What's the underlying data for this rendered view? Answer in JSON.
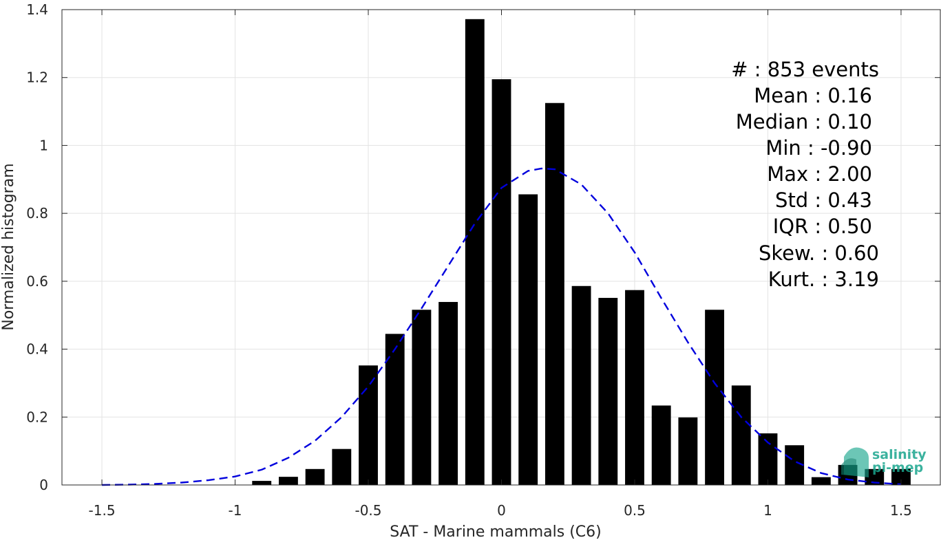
{
  "chart_data": {
    "type": "bar",
    "xlabel": "SAT - Marine mammals (C6)",
    "ylabel": "Normalized histogram",
    "xlim": [
      -1.65,
      1.65
    ],
    "ylim": [
      0,
      1.4
    ],
    "xticks": [
      -1.5,
      -1,
      -0.5,
      0,
      0.5,
      1,
      1.5
    ],
    "xtick_labels": [
      "-1.5",
      "-1",
      "-0.5",
      "0",
      "0.5",
      "1",
      "1.5"
    ],
    "yticks": [
      0,
      0.2,
      0.4,
      0.6,
      0.8,
      1,
      1.2,
      1.4
    ],
    "ytick_labels": [
      "0",
      "0.2",
      "0.4",
      "0.6",
      "0.8",
      "1",
      "1.2",
      "1.4"
    ],
    "grid": true,
    "bar_color": "#000000",
    "bars": {
      "x": [
        -0.9,
        -0.8,
        -0.7,
        -0.6,
        -0.5,
        -0.4,
        -0.3,
        -0.2,
        -0.1,
        0.0,
        0.1,
        0.2,
        0.3,
        0.4,
        0.5,
        0.6,
        0.7,
        0.8,
        0.9,
        1.0,
        1.1,
        1.2,
        1.3,
        1.4,
        1.5
      ],
      "values": [
        0.012,
        0.024,
        0.047,
        0.106,
        0.352,
        0.445,
        0.516,
        0.539,
        1.372,
        1.195,
        0.856,
        1.125,
        0.586,
        0.551,
        0.574,
        0.234,
        0.199,
        0.516,
        0.293,
        0.152,
        0.117,
        0.023,
        0.059,
        0.047,
        0.047
      ]
    },
    "fit_curve": {
      "style": "dashed",
      "color": "#0000dd",
      "x": [
        -1.5,
        -1.4,
        -1.3,
        -1.2,
        -1.1,
        -1.0,
        -0.9,
        -0.8,
        -0.7,
        -0.6,
        -0.5,
        -0.4,
        -0.3,
        -0.2,
        -0.1,
        0.0,
        0.1,
        0.15,
        0.2,
        0.3,
        0.4,
        0.5,
        0.6,
        0.7,
        0.8,
        0.9,
        1.0,
        1.1,
        1.2,
        1.3,
        1.4,
        1.5
      ],
      "y": [
        0.0,
        0.001,
        0.003,
        0.007,
        0.014,
        0.025,
        0.045,
        0.08,
        0.13,
        0.2,
        0.29,
        0.4,
        0.52,
        0.645,
        0.77,
        0.875,
        0.925,
        0.932,
        0.93,
        0.885,
        0.8,
        0.685,
        0.55,
        0.42,
        0.3,
        0.2,
        0.125,
        0.07,
        0.035,
        0.016,
        0.007,
        0.002
      ]
    },
    "stats": [
      "#  : 853 events",
      "Mean : 0.16",
      "Median : 0.10",
      "Min : -0.90",
      "Max : 2.00",
      "Std : 0.43",
      "IQR : 0.50",
      "Skew. : 0.60",
      "Kurt. : 3.19"
    ]
  },
  "logo": {
    "line1": "salinity",
    "line2": "pi-mep",
    "color": "#1aa58e"
  }
}
